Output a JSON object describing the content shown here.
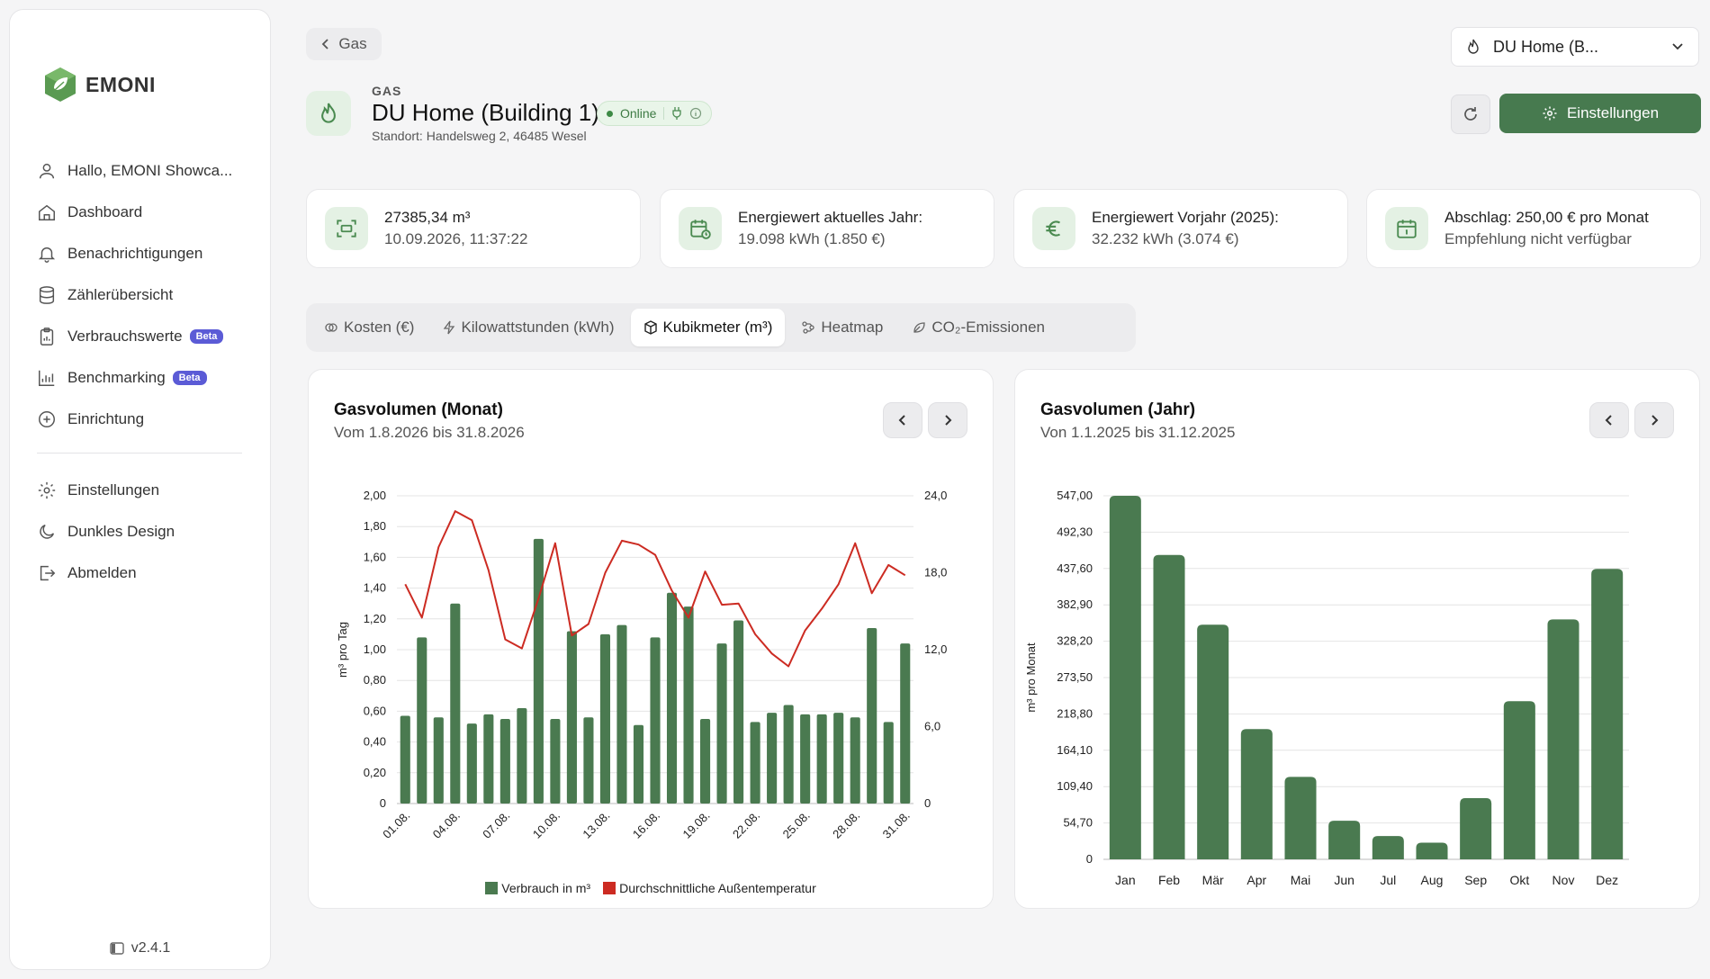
{
  "sidebar": {
    "brand": "EMONI",
    "items": [
      {
        "label": "Hallo, EMONI Showca...",
        "icon": "user-icon"
      },
      {
        "label": "Dashboard",
        "icon": "home-icon"
      },
      {
        "label": "Benachrichtigungen",
        "icon": "bell-icon"
      },
      {
        "label": "Zählerübersicht",
        "icon": "database-icon"
      },
      {
        "label": "Verbrauchswerte",
        "icon": "clipboard-icon",
        "badge": "Beta"
      },
      {
        "label": "Benchmarking",
        "icon": "chart-icon",
        "badge": "Beta"
      },
      {
        "label": "Einrichtung",
        "icon": "plus-circle-icon"
      }
    ],
    "bottom_items": [
      {
        "label": "Einstellungen",
        "icon": "gear-icon"
      },
      {
        "label": "Dunkles Design",
        "icon": "moon-icon"
      },
      {
        "label": "Abmelden",
        "icon": "logout-icon"
      }
    ],
    "version": "v2.4.1"
  },
  "header": {
    "back_label": "Gas",
    "meter_select": "DU Home (B...",
    "category": "GAS",
    "title": "DU Home (Building 1)",
    "status": "Online",
    "location": "Standort: Handelsweg 2, 46485 Wesel",
    "settings_label": "Einstellungen"
  },
  "cards": [
    {
      "line1": "27385,34 m³",
      "line2": "10.09.2026, 11:37:22",
      "icon": "meter-scan-icon"
    },
    {
      "line1": "Energiewert aktuelles Jahr:",
      "line2": "19.098 kWh (1.850 €)",
      "icon": "calendar-clock-icon"
    },
    {
      "line1": "Energiewert Vorjahr (2025):",
      "line2": "32.232 kWh (3.074 €)",
      "icon": "euro-icon"
    },
    {
      "line1": "Abschlag: 250,00 € pro Monat",
      "line2": "Empfehlung nicht verfügbar",
      "icon": "calendar-icon"
    }
  ],
  "tabs": [
    {
      "label": "Kosten (€)",
      "icon": "coins-icon",
      "active": false
    },
    {
      "label": "Kilowattstunden (kWh)",
      "icon": "bolt-icon",
      "active": false
    },
    {
      "label": "Kubikmeter (m³)",
      "icon": "cube-icon",
      "active": true
    },
    {
      "label": "Heatmap",
      "icon": "heatmap-icon",
      "active": false
    },
    {
      "label": "CO₂-Emissionen",
      "icon": "leaf-icon",
      "active": false
    }
  ],
  "colors": {
    "accent": "#477a4f",
    "bar": "#4a7a50",
    "line": "#cc2b22",
    "icon_bg": "#e4f1e4"
  },
  "chart_data": [
    {
      "type": "bar",
      "title": "Gasvolumen (Monat)",
      "subtitle": "Vom 1.8.2026 bis 31.8.2026",
      "ylabel": "m³ pro Tag",
      "ylim": [
        0,
        2
      ],
      "y2lim": [
        0,
        24
      ],
      "yticks": [
        "0",
        "0,20",
        "0,40",
        "0,60",
        "0,80",
        "1,00",
        "1,20",
        "1,40",
        "1,60",
        "1,80",
        "2,00"
      ],
      "y2ticks": [
        "0",
        "6,0",
        "12,0",
        "18,0",
        "24,0"
      ],
      "xticks": [
        "01.08.",
        "04.08.",
        "07.08.",
        "10.08.",
        "13.08.",
        "16.08.",
        "19.08.",
        "22.08.",
        "25.08.",
        "28.08.",
        "31.08."
      ],
      "series": [
        {
          "name": "Verbrauch in m³",
          "kind": "bar",
          "values": [
            0.57,
            1.08,
            0.56,
            1.3,
            0.52,
            0.58,
            0.55,
            0.62,
            1.72,
            0.55,
            1.12,
            0.56,
            1.1,
            1.16,
            0.51,
            1.08,
            1.37,
            1.28,
            0.55,
            1.04,
            1.19,
            0.53,
            0.59,
            0.64,
            0.58,
            0.58,
            0.59,
            0.56,
            1.14,
            0.53,
            1.04
          ]
        },
        {
          "name": "Durchschnittliche Außentemperatur",
          "kind": "line",
          "values": [
            17.1,
            14.5,
            20.0,
            22.8,
            22.1,
            18.2,
            12.8,
            12.1,
            16.0,
            20.3,
            13.1,
            14.0,
            18.0,
            20.5,
            20.2,
            19.4,
            16.6,
            14.5,
            18.1,
            15.5,
            15.6,
            13.2,
            11.7,
            10.7,
            13.5,
            15.2,
            17.1,
            20.3,
            16.4,
            18.6,
            17.8
          ]
        }
      ],
      "legend": "bottom"
    },
    {
      "type": "bar",
      "title": "Gasvolumen (Jahr)",
      "subtitle": "Von 1.1.2025 bis 31.12.2025",
      "ylabel": "m³ pro Monat",
      "ylim": [
        0,
        547
      ],
      "yticks": [
        "0",
        "54,70",
        "109,40",
        "164,10",
        "218,80",
        "273,50",
        "328,20",
        "382,90",
        "437,60",
        "492,30",
        "547,00"
      ],
      "categories": [
        "Jan",
        "Feb",
        "Mär",
        "Apr",
        "Mai",
        "Jun",
        "Jul",
        "Aug",
        "Sep",
        "Okt",
        "Nov",
        "Dez"
      ],
      "values": [
        547,
        458,
        353,
        196,
        124,
        58,
        35,
        25,
        92,
        238,
        361,
        437
      ]
    }
  ]
}
